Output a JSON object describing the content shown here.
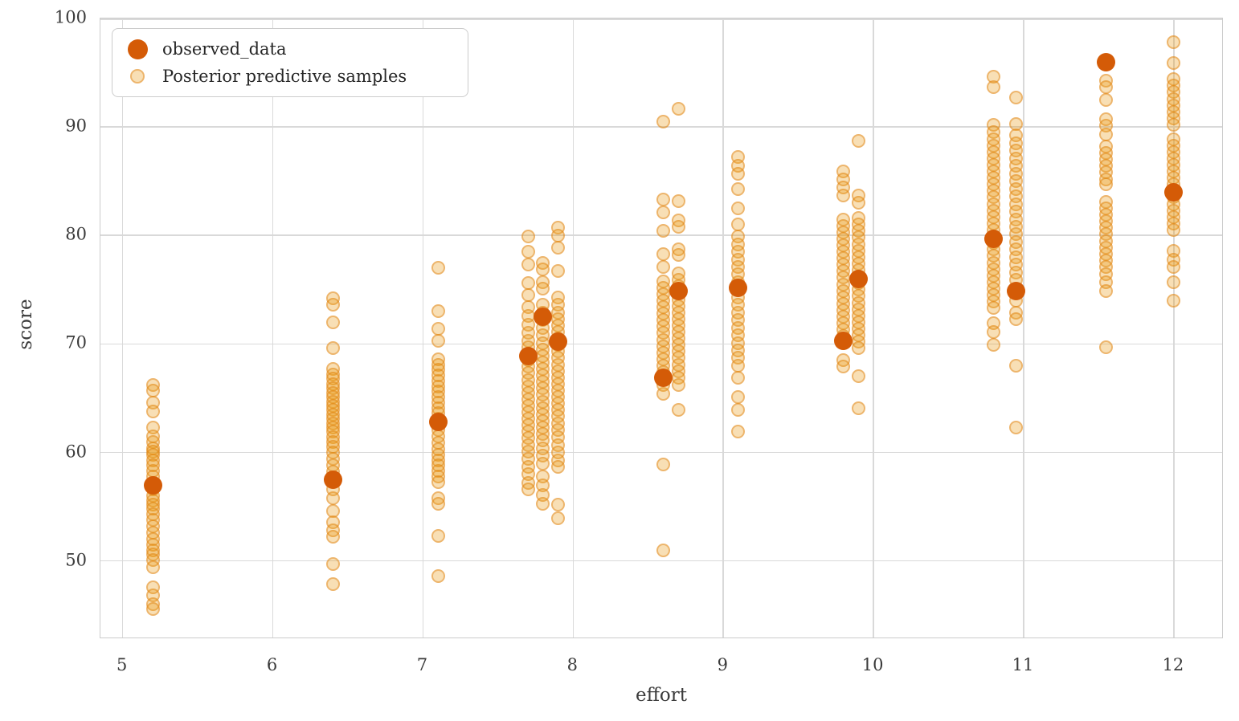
{
  "legend": {
    "items": [
      {
        "label": "observed_data",
        "marker": "observed-data-marker"
      },
      {
        "label": "Posterior predictive samples",
        "marker": "posterior-samples-marker"
      }
    ]
  },
  "axes": {
    "xlabel": "effort",
    "ylabel": "score"
  },
  "colors": {
    "observed": "#d45b07",
    "samples": "#e8940a",
    "grid": "#d9d9d9",
    "frame": "#cccccc",
    "text": "#3b3b3b"
  },
  "chart_data": {
    "type": "scatter",
    "title": "",
    "xlabel": "effort",
    "ylabel": "score",
    "xlim": [
      4.852,
      12.332
    ],
    "ylim": [
      42.8,
      100.0
    ],
    "xticks": [
      5,
      6,
      7,
      8,
      9,
      10,
      11,
      12
    ],
    "yticks": [
      50,
      60,
      70,
      80,
      90,
      100
    ],
    "grid": true,
    "legend_position": "upper left",
    "series": [
      {
        "name": "observed_data",
        "color": "#d45b07",
        "alpha": 1.0,
        "marker_size": 23,
        "points": [
          [
            5.2,
            57.0
          ],
          [
            6.4,
            57.5
          ],
          [
            7.1,
            62.8
          ],
          [
            7.7,
            68.9
          ],
          [
            7.8,
            72.5
          ],
          [
            7.9,
            70.2
          ],
          [
            8.6,
            66.9
          ],
          [
            8.7,
            74.9
          ],
          [
            9.1,
            75.2
          ],
          [
            9.8,
            70.3
          ],
          [
            9.9,
            76.0
          ],
          [
            10.8,
            79.7
          ],
          [
            10.95,
            74.9
          ],
          [
            11.55,
            96.0
          ],
          [
            12.0,
            84.0
          ]
        ]
      },
      {
        "name": "Posterior predictive samples",
        "color": "#e8940a",
        "alpha": 0.32,
        "marker_size": 17,
        "clusters": [
          {
            "effort": 5.2,
            "scores": [
              66.2,
              65.7,
              64.6,
              63.8,
              62.3,
              61.5,
              61.0,
              60.4,
              60.1,
              59.8,
              59.3,
              58.8,
              58.3,
              57.8,
              57.2,
              56.6,
              56.0,
              55.6,
              55.2,
              54.8,
              54.3,
              53.8,
              53.2,
              52.6,
              52.0,
              51.5,
              51.0,
              50.6,
              50.1,
              49.4,
              47.6,
              46.8,
              46.0,
              45.6
            ]
          },
          {
            "effort": 6.4,
            "scores": [
              74.2,
              73.6,
              72.0,
              69.6,
              67.7,
              67.2,
              66.8,
              66.3,
              65.9,
              65.5,
              65.1,
              64.7,
              64.3,
              63.9,
              63.5,
              63.1,
              62.7,
              62.3,
              61.9,
              61.4,
              61.0,
              60.5,
              60.0,
              59.4,
              58.8,
              58.2,
              57.4,
              56.6,
              55.8,
              54.6,
              53.6,
              52.8,
              52.2,
              49.7,
              47.9
            ]
          },
          {
            "effort": 7.1,
            "scores": [
              77.0,
              73.0,
              71.4,
              70.3,
              68.6,
              68.1,
              67.6,
              67.1,
              66.6,
              66.1,
              65.6,
              65.1,
              64.6,
              64.1,
              63.6,
              63.1,
              62.6,
              62.1,
              61.5,
              60.9,
              60.3,
              59.8,
              59.3,
              58.8,
              58.3,
              57.8,
              57.3,
              55.8,
              55.3,
              52.3,
              48.6
            ]
          },
          {
            "effort": 7.7,
            "scores": [
              79.9,
              78.5,
              77.3,
              75.6,
              74.5,
              73.4,
              72.6,
              71.8,
              71.0,
              70.3,
              69.7,
              69.1,
              68.5,
              67.9,
              67.3,
              66.7,
              66.1,
              65.5,
              64.9,
              64.3,
              63.7,
              63.1,
              62.5,
              61.9,
              61.3,
              60.7,
              60.1,
              59.4,
              58.7,
              58.0,
              57.2,
              56.6
            ]
          },
          {
            "effort": 7.8,
            "scores": [
              77.5,
              76.9,
              75.7,
              75.1,
              73.6,
              72.9,
              72.2,
              71.5,
              70.8,
              70.1,
              69.5,
              68.9,
              68.3,
              67.7,
              67.1,
              66.5,
              65.9,
              65.3,
              64.7,
              64.1,
              63.5,
              62.9,
              62.3,
              61.7,
              61.1,
              60.4,
              59.7,
              59.0,
              57.8,
              57.0,
              56.1,
              55.3
            ]
          },
          {
            "effort": 7.9,
            "scores": [
              80.7,
              80.0,
              78.9,
              76.7,
              74.3,
              73.6,
              72.9,
              72.3,
              71.7,
              71.1,
              70.5,
              69.9,
              69.3,
              68.7,
              68.1,
              67.5,
              66.9,
              66.3,
              65.7,
              65.1,
              64.5,
              63.9,
              63.3,
              62.7,
              62.1,
              61.4,
              60.7,
              60.0,
              59.3,
              58.7,
              55.2,
              53.9
            ]
          },
          {
            "effort": 8.6,
            "scores": [
              90.5,
              83.3,
              82.1,
              80.4,
              78.3,
              77.1,
              75.8,
              75.2,
              74.6,
              74.0,
              73.4,
              72.8,
              72.2,
              71.6,
              71.0,
              70.4,
              69.8,
              69.2,
              68.6,
              68.0,
              67.4,
              66.8,
              66.2,
              65.4,
              58.9,
              51.0
            ]
          },
          {
            "effort": 8.7,
            "scores": [
              91.7,
              83.2,
              81.4,
              80.8,
              78.7,
              78.2,
              76.5,
              75.9,
              75.3,
              74.7,
              74.1,
              73.5,
              72.9,
              72.3,
              71.7,
              71.1,
              70.5,
              69.9,
              69.3,
              68.7,
              68.1,
              67.5,
              66.9,
              66.2,
              63.9
            ]
          },
          {
            "effort": 9.1,
            "scores": [
              87.2,
              86.4,
              85.7,
              84.3,
              82.5,
              81.0,
              79.9,
              79.2,
              78.5,
              77.8,
              77.1,
              76.4,
              75.7,
              75.0,
              74.3,
              73.6,
              72.9,
              72.2,
              71.5,
              70.8,
              70.1,
              69.4,
              68.7,
              68.0,
              66.9,
              65.1,
              63.9,
              61.9
            ]
          },
          {
            "effort": 9.8,
            "scores": [
              85.9,
              85.2,
              84.4,
              83.7,
              81.5,
              80.9,
              80.3,
              79.7,
              79.1,
              78.5,
              77.9,
              77.3,
              76.7,
              76.1,
              75.5,
              74.9,
              74.3,
              73.7,
              73.1,
              72.5,
              71.9,
              71.3,
              70.7,
              70.1,
              68.5,
              67.9
            ]
          },
          {
            "effort": 9.9,
            "scores": [
              88.7,
              83.7,
              83.0,
              81.6,
              81.0,
              80.4,
              79.8,
              79.2,
              78.6,
              78.0,
              77.4,
              76.8,
              76.2,
              75.6,
              75.0,
              74.4,
              73.8,
              73.2,
              72.6,
              72.0,
              71.4,
              70.8,
              70.2,
              69.6,
              67.0,
              64.1
            ]
          },
          {
            "effort": 10.8,
            "scores": [
              94.6,
              93.7,
              90.2,
              89.5,
              88.9,
              88.3,
              87.7,
              87.1,
              86.5,
              85.9,
              85.3,
              84.7,
              84.1,
              83.5,
              82.9,
              82.3,
              81.7,
              81.1,
              80.5,
              79.9,
              79.3,
              78.7,
              78.1,
              77.5,
              76.9,
              76.3,
              75.7,
              75.1,
              74.5,
              73.9,
              73.3,
              71.9,
              71.1,
              69.9
            ]
          },
          {
            "effort": 10.95,
            "scores": [
              92.7,
              90.3,
              89.2,
              88.5,
              87.8,
              87.1,
              86.4,
              85.7,
              85.0,
              84.3,
              83.6,
              82.9,
              82.2,
              81.5,
              80.8,
              80.1,
              79.4,
              78.7,
              78.0,
              77.3,
              76.6,
              75.9,
              74.0,
              72.9,
              72.3,
              68.0,
              62.3
            ]
          },
          {
            "effort": 11.55,
            "scores": [
              94.3,
              93.7,
              92.5,
              90.7,
              90.1,
              89.3,
              88.2,
              87.6,
              87.0,
              86.4,
              85.8,
              85.2,
              84.7,
              83.1,
              82.5,
              81.9,
              81.3,
              80.7,
              80.1,
              79.5,
              78.9,
              78.3,
              77.7,
              77.1,
              76.4,
              75.7,
              74.9,
              69.7
            ]
          },
          {
            "effort": 12.0,
            "scores": [
              97.8,
              95.9,
              94.4,
              93.8,
              93.2,
              92.6,
              92.0,
              91.4,
              90.8,
              90.2,
              88.9,
              88.3,
              87.7,
              87.1,
              86.5,
              85.9,
              85.3,
              84.7,
              84.1,
              83.5,
              82.9,
              82.3,
              81.7,
              81.1,
              80.5,
              78.6,
              77.8,
              77.1,
              75.7,
              74.0
            ]
          }
        ]
      }
    ]
  }
}
